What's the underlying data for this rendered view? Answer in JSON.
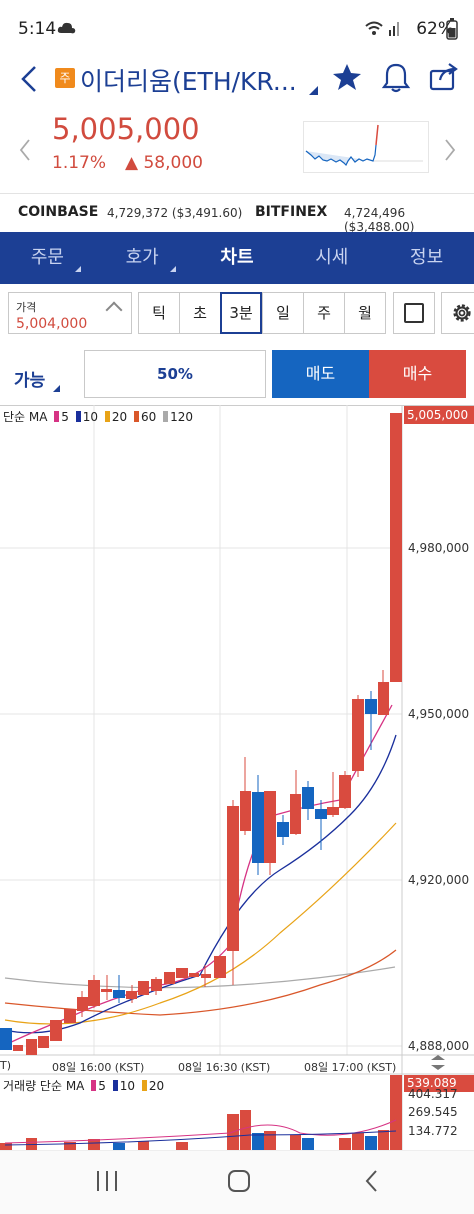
{
  "status": {
    "time": "5:14",
    "battery": "62%"
  },
  "header": {
    "badge": "주",
    "title": "이더리움(ETH/KR..."
  },
  "quote": {
    "price": "5,005,000",
    "change_pct": "1.17%",
    "change_amt": "▲ 58,000"
  },
  "exchanges": [
    {
      "name": "COINBASE",
      "value": "4,729,372 ($3,491.60)"
    },
    {
      "name": "BITFINEX",
      "value": "4,724,496 ($3,488.00)"
    }
  ],
  "tabs": [
    {
      "label": "주문",
      "has_menu": true
    },
    {
      "label": "호가",
      "has_menu": true
    },
    {
      "label": "차트",
      "active": true
    },
    {
      "label": "시세"
    },
    {
      "label": "정보"
    }
  ],
  "controls": {
    "price_label": "가격",
    "price_value": "5,004,000",
    "periods": [
      "틱",
      "초",
      "3분",
      "일",
      "주",
      "월"
    ],
    "active_period": "3분"
  },
  "order": {
    "avail_label": "가능",
    "percent": "50%",
    "sell_label": "매도",
    "buy_label": "매수"
  },
  "chart": {
    "ma_legend_label": "단순 MA",
    "ma_periods": [
      {
        "label": "5",
        "color": "#d63384"
      },
      {
        "label": "10",
        "color": "#1a2f9c"
      },
      {
        "label": "20",
        "color": "#e8a317"
      },
      {
        "label": "60",
        "color": "#d9572a"
      },
      {
        "label": "120",
        "color": "#aaaaaa"
      }
    ],
    "current_price_tag": "5,005,000",
    "y_labels": [
      "4,980,000",
      "4,950,000",
      "4,920,000",
      "4,888,000"
    ],
    "time_labels": [
      "T)",
      "08일 16:00 (KST)",
      "08일 16:30 (KST)",
      "08일 17:00 (KST)"
    ],
    "volume_legend_label": "거래량 단순 MA",
    "volume_ma": [
      {
        "label": "5",
        "color": "#d63384"
      },
      {
        "label": "10",
        "color": "#1a2f9c"
      },
      {
        "label": "20",
        "color": "#e8a317"
      }
    ],
    "volume_tag": "539.089",
    "volume_labels": [
      "404.317",
      "269.545",
      "134.772"
    ]
  },
  "colors": {
    "up": "#d94b3f",
    "down": "#1565c0",
    "brand": "#1c3f94"
  }
}
